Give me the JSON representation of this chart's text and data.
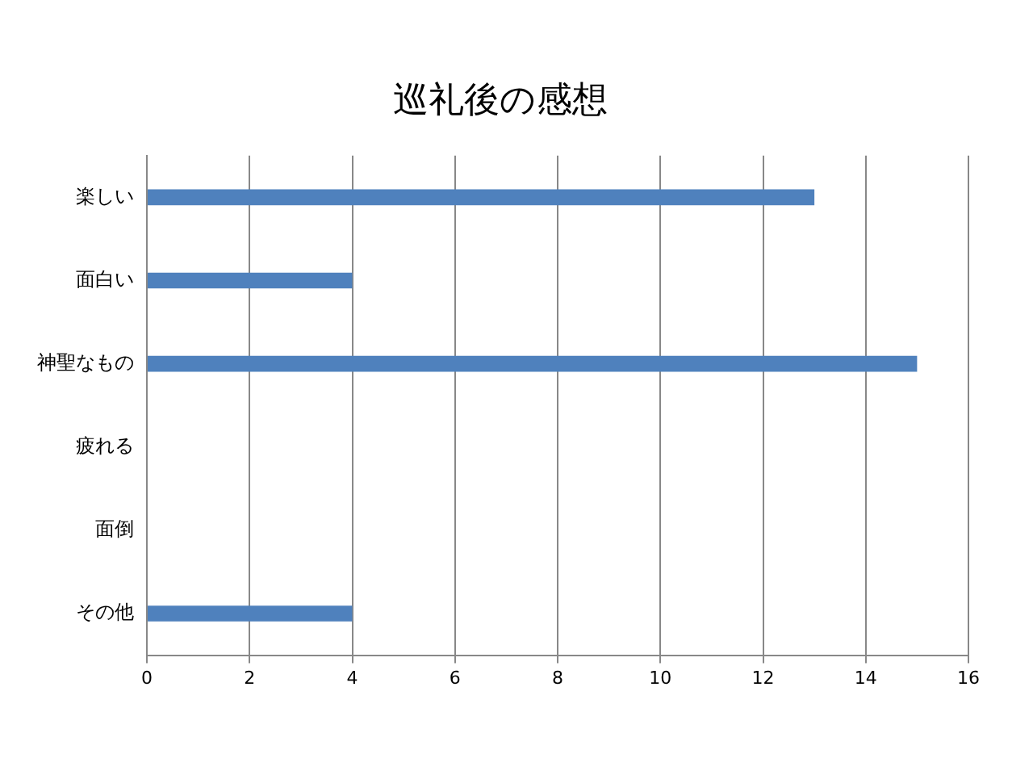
{
  "chart_data": {
    "type": "bar",
    "orientation": "horizontal",
    "title": "巡礼後の感想",
    "categories": [
      "楽しい",
      "面白い",
      "神聖なもの",
      "疲れる",
      "面倒",
      "その他"
    ],
    "values": [
      13,
      4,
      15,
      0,
      0,
      4
    ],
    "color": "#4f81bd",
    "xlim": [
      0,
      16
    ],
    "xticks": [
      0,
      2,
      4,
      6,
      8,
      10,
      12,
      14,
      16
    ],
    "grid": "x",
    "legend": false
  }
}
